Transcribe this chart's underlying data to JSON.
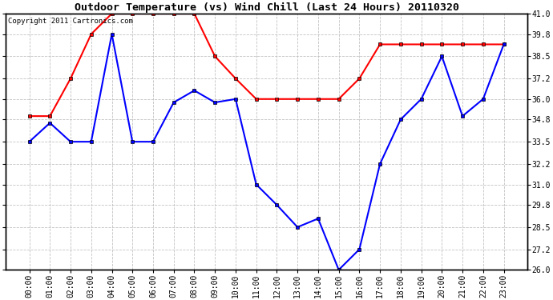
{
  "title": "Outdoor Temperature (vs) Wind Chill (Last 24 Hours) 20110320",
  "copyright_text": "Copyright 2011 Cartronics.com",
  "x_labels": [
    "00:00",
    "01:00",
    "02:00",
    "03:00",
    "04:00",
    "05:00",
    "06:00",
    "07:00",
    "08:00",
    "09:00",
    "10:00",
    "11:00",
    "12:00",
    "13:00",
    "14:00",
    "15:00",
    "16:00",
    "17:00",
    "18:00",
    "19:00",
    "20:00",
    "21:00",
    "22:00",
    "23:00"
  ],
  "temp_data": [
    35.0,
    35.0,
    37.2,
    39.8,
    41.0,
    41.0,
    41.0,
    41.0,
    41.0,
    38.5,
    37.2,
    36.0,
    36.0,
    36.0,
    36.0,
    36.0,
    37.2,
    39.2,
    39.2,
    39.2,
    39.2,
    39.2,
    39.2,
    39.2
  ],
  "wind_chill_data": [
    33.5,
    34.6,
    33.5,
    33.5,
    39.8,
    33.5,
    33.5,
    35.8,
    36.5,
    35.8,
    36.0,
    31.0,
    29.8,
    28.5,
    29.0,
    26.0,
    27.2,
    32.2,
    34.8,
    36.0,
    38.5,
    35.0,
    36.0,
    39.2
  ],
  "ylim_min": 26.0,
  "ylim_max": 41.0,
  "yticks": [
    26.0,
    27.2,
    28.5,
    29.8,
    31.0,
    32.2,
    33.5,
    34.8,
    36.0,
    37.2,
    38.5,
    39.8,
    41.0
  ],
  "temp_color": "#FF0000",
  "wind_chill_color": "#0000FF",
  "background_color": "#FFFFFF",
  "plot_bg_color": "#FFFFFF",
  "grid_color": "#BBBBBB",
  "title_fontsize": 9.5,
  "tick_fontsize": 7,
  "copyright_fontsize": 6.5
}
